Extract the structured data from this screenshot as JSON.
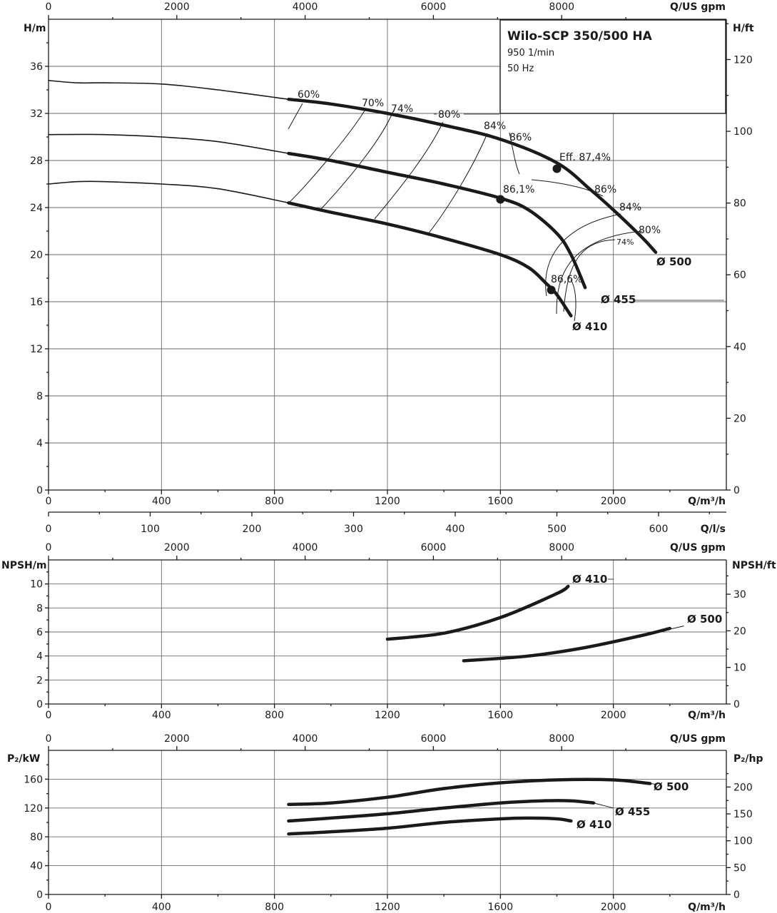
{
  "chart_data": [
    {
      "type": "line",
      "panel": "head",
      "title": "Wilo-SCP 350/500 HA",
      "subtitle_lines": [
        "950 1/min",
        "50 Hz"
      ],
      "xlabel": "Q/m³/h",
      "xlabel_top": "Q/US gpm",
      "xlabel_ls": "Q/l/s",
      "ylabel": "H/m",
      "ylabel_right": "H/ft",
      "xlim": [
        0,
        2400
      ],
      "ylim": [
        0,
        40
      ],
      "x_ticks": [
        0,
        400,
        800,
        1200,
        1600,
        2000
      ],
      "y_ticks": [
        0,
        4,
        8,
        12,
        16,
        20,
        24,
        28,
        32,
        36
      ],
      "gpm_ticks": [
        0,
        2000,
        4000,
        6000,
        8000
      ],
      "ft_ticks": [
        0,
        20,
        40,
        60,
        80,
        100,
        120
      ],
      "ls_ticks": [
        0,
        100,
        200,
        300,
        400,
        500,
        600
      ],
      "grid": true,
      "series": [
        {
          "name": "Ø 500",
          "x": [
            0,
            100,
            200,
            400,
            600,
            850,
            1000,
            1200,
            1400,
            1600,
            1800,
            1920,
            2000,
            2100,
            2150
          ],
          "y": [
            34.8,
            34.6,
            34.6,
            34.5,
            34.0,
            33.2,
            32.8,
            32.0,
            31.0,
            29.8,
            27.8,
            25.5,
            23.8,
            21.5,
            20.2
          ]
        },
        {
          "name": "Ø 455",
          "x": [
            0,
            200,
            400,
            600,
            850,
            1000,
            1200,
            1400,
            1600,
            1700,
            1800,
            1850,
            1900
          ],
          "y": [
            30.2,
            30.2,
            30.0,
            29.6,
            28.6,
            28.0,
            27.0,
            26.0,
            24.8,
            23.8,
            21.8,
            20.0,
            17.2
          ]
        },
        {
          "name": "Ø 410",
          "x": [
            0,
            100,
            200,
            400,
            600,
            850,
            1000,
            1200,
            1400,
            1600,
            1700,
            1760,
            1800,
            1850
          ],
          "y": [
            26.0,
            26.2,
            26.2,
            26.0,
            25.6,
            24.4,
            23.6,
            22.6,
            21.4,
            20.0,
            18.9,
            17.6,
            16.6,
            14.8
          ]
        }
      ],
      "efficiency_labels": [
        "60%",
        "70%",
        "74%",
        "80%",
        "84%",
        "86%",
        "Eff. 87,4%",
        "86,1%",
        "86%",
        "84%",
        "80%",
        "74%",
        "86,6%"
      ],
      "bep_points": [
        {
          "x": 1800,
          "y": 27.3
        },
        {
          "x": 1600,
          "y": 24.7
        },
        {
          "x": 1780,
          "y": 17.0
        }
      ]
    },
    {
      "type": "line",
      "panel": "npsh",
      "xlabel": "Q/m³/h",
      "xlabel_top": "Q/US gpm",
      "ylabel": "NPSH/m",
      "ylabel_right": "NPSH/ft",
      "xlim": [
        0,
        2400
      ],
      "ylim": [
        0,
        12
      ],
      "x_ticks": [
        0,
        400,
        800,
        1200,
        1600,
        2000
      ],
      "y_ticks": [
        0,
        2,
        4,
        6,
        8,
        10
      ],
      "gpm_ticks": [
        0,
        2000,
        4000,
        6000,
        8000
      ],
      "ft_ticks": [
        0,
        10,
        20,
        30
      ],
      "grid": true,
      "series": [
        {
          "name": "Ø 410",
          "x": [
            1200,
            1400,
            1600,
            1800,
            1840
          ],
          "y": [
            5.4,
            5.9,
            7.2,
            9.2,
            9.8
          ]
        },
        {
          "name": "Ø 500",
          "x": [
            1470,
            1700,
            1900,
            2100,
            2200
          ],
          "y": [
            3.6,
            4.0,
            4.7,
            5.7,
            6.3
          ]
        }
      ]
    },
    {
      "type": "line",
      "panel": "power",
      "xlabel": "Q/m³/h",
      "xlabel_top": "Q/US gpm",
      "ylabel": "P₂/kW",
      "ylabel_right": "P₂/hp",
      "xlim": [
        0,
        2400
      ],
      "ylim": [
        0,
        200
      ],
      "x_ticks": [
        0,
        400,
        800,
        1200,
        1600,
        2000
      ],
      "y_ticks": [
        0,
        40,
        80,
        120,
        160
      ],
      "gpm_ticks": [
        0,
        2000,
        4000,
        6000,
        8000
      ],
      "hp_ticks": [
        0,
        50,
        100,
        150,
        200
      ],
      "grid": true,
      "series": [
        {
          "name": "Ø 500",
          "x": [
            850,
            1000,
            1200,
            1400,
            1600,
            1800,
            2000,
            2130
          ],
          "y": [
            125,
            127,
            135,
            147,
            155,
            159,
            159,
            154
          ]
        },
        {
          "name": "Ø 455",
          "x": [
            850,
            1000,
            1200,
            1400,
            1600,
            1750,
            1850,
            1930
          ],
          "y": [
            102,
            106,
            112,
            120,
            127,
            130,
            130,
            127
          ]
        },
        {
          "name": "Ø 410",
          "x": [
            850,
            1000,
            1200,
            1400,
            1600,
            1700,
            1800,
            1850
          ],
          "y": [
            84,
            87,
            92,
            100,
            105,
            106,
            105,
            102
          ]
        }
      ]
    }
  ]
}
